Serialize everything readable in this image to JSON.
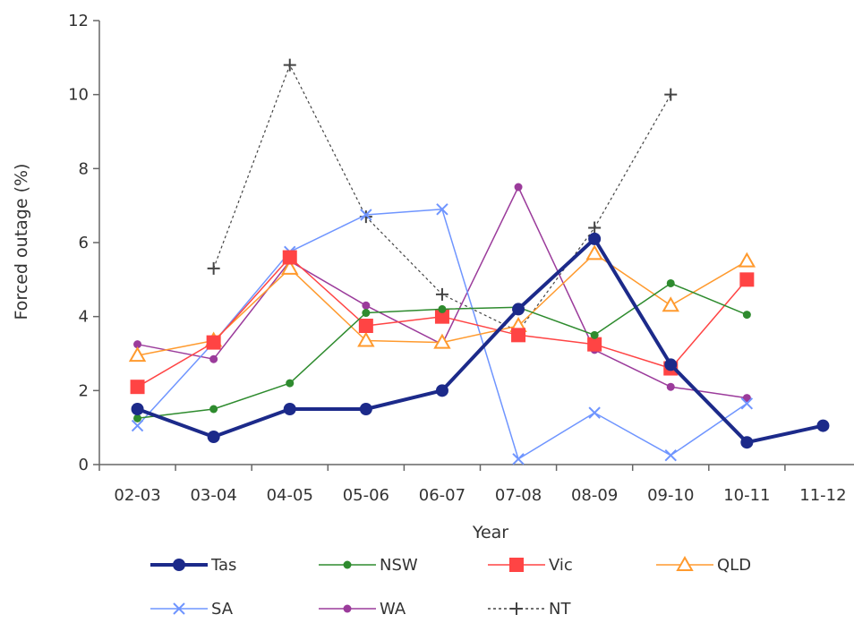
{
  "chart_data": {
    "type": "line",
    "title": "",
    "xlabel": "Year",
    "ylabel": "Forced outage (%)",
    "ylim": [
      0,
      12
    ],
    "yticks": [
      "0",
      "2",
      "4",
      "6",
      "8",
      "10",
      "12"
    ],
    "categories": [
      "02-03",
      "03-04",
      "04-05",
      "05-06",
      "06-07",
      "07-08",
      "08-09",
      "09-10",
      "10-11",
      "11-12"
    ],
    "grid": false,
    "legend_position": "bottom",
    "series": [
      {
        "name": "Tas",
        "color": "#1c2a8a",
        "marker": "circle-filled-large",
        "dash": "",
        "width": 4,
        "values": [
          1.5,
          0.75,
          1.5,
          1.5,
          2.0,
          4.2,
          6.1,
          2.7,
          0.6,
          1.05
        ]
      },
      {
        "name": "NSW",
        "color": "#2e8b2e",
        "marker": "dot-small",
        "dash": "",
        "width": 1.5,
        "values": [
          1.25,
          1.5,
          2.2,
          4.1,
          4.2,
          4.25,
          3.5,
          4.9,
          4.05,
          null
        ]
      },
      {
        "name": "Vic",
        "color": "#ff4444",
        "marker": "square-filled",
        "dash": "",
        "width": 1.5,
        "values": [
          2.1,
          3.3,
          5.6,
          3.75,
          4.0,
          3.5,
          3.25,
          2.6,
          5.0,
          null
        ]
      },
      {
        "name": "QLD",
        "color": "#ff9a2e",
        "marker": "triangle-open",
        "dash": "",
        "width": 1.5,
        "values": [
          2.95,
          3.35,
          5.3,
          3.35,
          3.3,
          3.75,
          5.7,
          4.3,
          5.5,
          null
        ]
      },
      {
        "name": "SA",
        "color": "#6f95ff",
        "marker": "x",
        "dash": "",
        "width": 1.5,
        "values": [
          1.05,
          3.3,
          5.75,
          6.75,
          6.9,
          0.15,
          1.4,
          0.25,
          1.65,
          null
        ]
      },
      {
        "name": "WA",
        "color": "#9b3b9b",
        "marker": "dot-small",
        "dash": "",
        "width": 1.5,
        "values": [
          3.25,
          2.85,
          5.5,
          4.3,
          3.25,
          7.5,
          3.1,
          2.1,
          1.8,
          null
        ]
      },
      {
        "name": "NT",
        "color": "#444444",
        "marker": "plus",
        "dash": "3,3",
        "width": 1.2,
        "values": [
          null,
          5.3,
          10.8,
          6.7,
          4.6,
          3.6,
          6.4,
          10.0,
          null,
          null
        ]
      }
    ]
  }
}
